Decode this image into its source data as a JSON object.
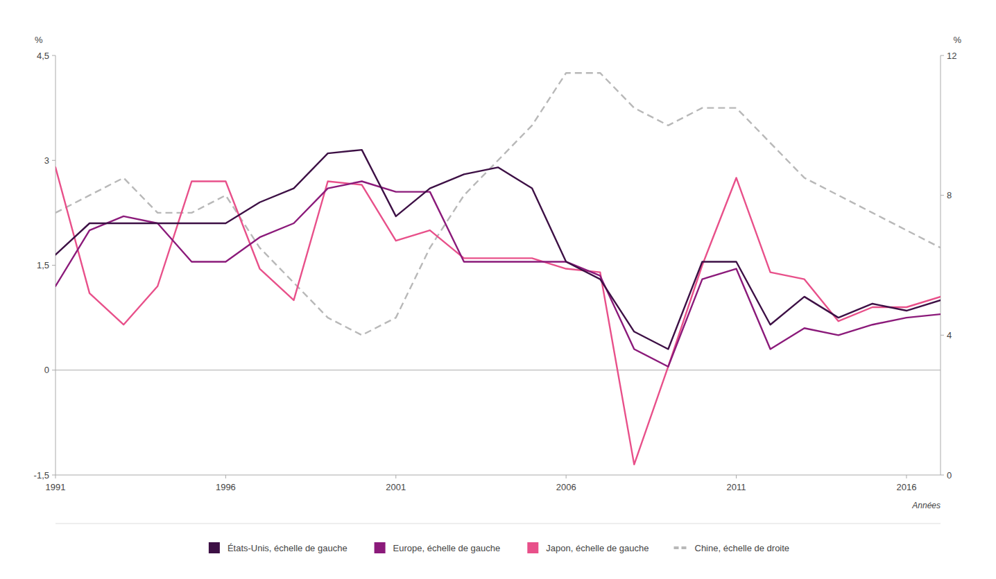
{
  "chart_data": {
    "type": "line",
    "x": [
      1991,
      1992,
      1993,
      1994,
      1995,
      1996,
      1997,
      1998,
      1999,
      2000,
      2001,
      2002,
      2003,
      2004,
      2005,
      2006,
      2007,
      2008,
      2009,
      2010,
      2011,
      2012,
      2013,
      2014,
      2015,
      2016,
      2017
    ],
    "series": [
      {
        "name": "États-Unis, échelle de gauche",
        "color": "#3d1045",
        "line_style": "solid",
        "values": [
          1.65,
          2.1,
          2.1,
          2.1,
          2.1,
          2.1,
          2.4,
          2.6,
          3.1,
          3.15,
          2.2,
          2.6,
          2.8,
          2.9,
          2.6,
          1.55,
          1.3,
          0.55,
          0.3,
          1.55,
          1.55,
          0.65,
          1.05,
          0.75,
          0.95,
          0.85,
          1.0
        ]
      },
      {
        "name": "Europe, échelle de gauche",
        "color": "#8b1a7a",
        "line_style": "solid",
        "values": [
          1.2,
          2.0,
          2.2,
          2.1,
          1.55,
          1.55,
          1.9,
          2.1,
          2.6,
          2.7,
          2.55,
          2.55,
          1.55,
          1.55,
          1.55,
          1.55,
          1.35,
          0.3,
          0.05,
          1.3,
          1.45,
          0.3,
          0.6,
          0.5,
          0.65,
          0.75,
          0.8
        ]
      },
      {
        "name": "Japon, échelle de gauche",
        "color": "#e8508a",
        "line_style": "solid",
        "values": [
          2.9,
          1.1,
          0.65,
          1.2,
          2.7,
          2.7,
          1.45,
          1.0,
          2.7,
          2.65,
          1.85,
          2.0,
          1.6,
          1.6,
          1.6,
          1.45,
          1.4,
          -1.35,
          0.05,
          1.5,
          2.75,
          1.4,
          1.3,
          0.7,
          0.9,
          0.9,
          1.05
        ]
      },
      {
        "name": "Chine, échelle de droite",
        "color": "#b8b8b8",
        "line_style": "dashed",
        "axis": "y2",
        "values": [
          7.5,
          8.0,
          8.5,
          7.5,
          7.5,
          8.0,
          6.5,
          5.5,
          4.5,
          4.0,
          4.5,
          6.5,
          8.0,
          9.0,
          10.0,
          11.5,
          11.5,
          10.5,
          10.0,
          10.5,
          10.5,
          9.5,
          8.5,
          8.0,
          7.5,
          7.0,
          6.5
        ]
      }
    ],
    "xlim": [
      1991,
      2017
    ],
    "xticks": [
      1991,
      1996,
      2001,
      2006,
      2011,
      2016
    ],
    "ylim": [
      -1.5,
      4.5
    ],
    "yticks": [
      {
        "value": -1.5,
        "label": "-1,5"
      },
      0,
      {
        "value": 1.5,
        "label": "1,5"
      },
      3,
      {
        "value": 4.5,
        "label": "4,5"
      }
    ],
    "y2lim": [
      0,
      12
    ],
    "y2ticks": [
      0,
      4,
      8,
      12
    ],
    "x_label": "Années",
    "y_label": "%",
    "y2_label": "%",
    "grid": false,
    "legend": "bottom"
  }
}
